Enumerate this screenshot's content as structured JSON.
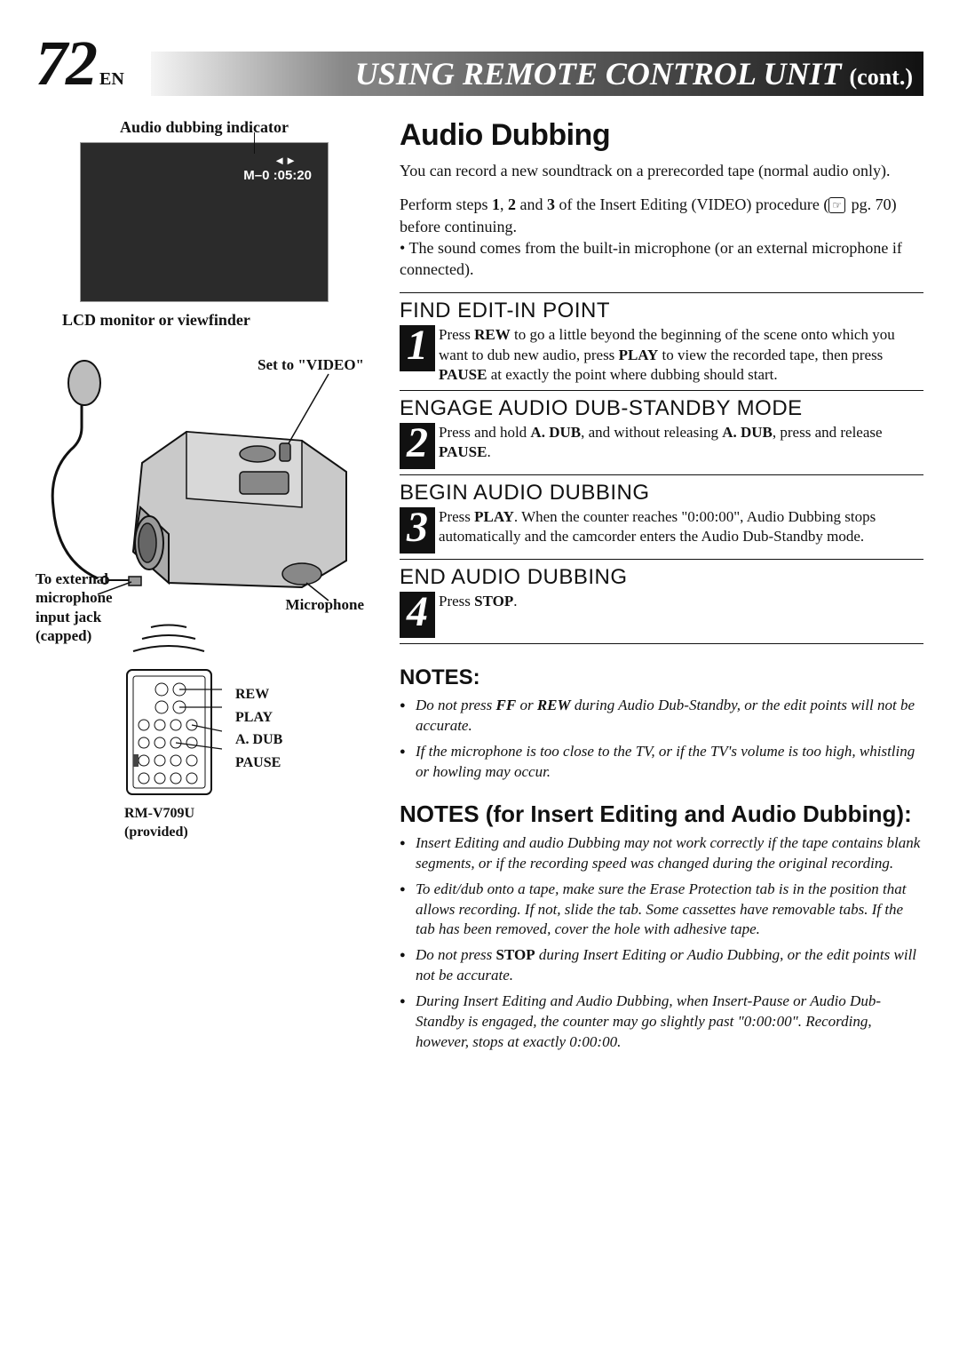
{
  "page": {
    "number": "72",
    "lang": "EN"
  },
  "header": {
    "title": "USING REMOTE CONTROL UNIT",
    "cont": "(cont.)"
  },
  "left": {
    "indicator_label": "Audio dubbing indicator",
    "lcd_counter": "M–0 :05:20",
    "lcd_monitor_label": "LCD monitor or viewfinder",
    "set_video": "Set to \"VIDEO\"",
    "jack_label": "To external\nmicrophone\ninput jack\n(capped)",
    "mic_label": "Microphone",
    "remote_buttons": [
      "REW",
      "PLAY",
      "A. DUB",
      "PAUSE"
    ],
    "remote_model": "RM-V709U",
    "remote_provided": "(provided)"
  },
  "right": {
    "title": "Audio Dubbing",
    "intro1": "You can record a new soundtrack on a prerecorded tape (normal audio only).",
    "intro2_a": "Perform steps ",
    "intro2_b1": "1",
    "intro2_c": ", ",
    "intro2_b2": "2",
    "intro2_d": " and ",
    "intro2_b3": "3",
    "intro2_e": " of the Insert Editing (VIDEO) procedure (",
    "intro2_pg": " pg. 70) before continuing.",
    "intro3": "The sound comes from the built-in microphone (or an external microphone if connected).",
    "steps": [
      {
        "n": "1",
        "title": "FIND EDIT-IN POINT",
        "text_parts": [
          "Press ",
          "REW",
          " to go a little beyond the beginning of the scene onto which you want to dub new audio, press ",
          "PLAY",
          " to view the recorded tape, then press ",
          "PAUSE",
          " at exactly the point where dubbing should start."
        ]
      },
      {
        "n": "2",
        "title": "ENGAGE AUDIO DUB-STANDBY MODE",
        "text_parts": [
          "Press and hold ",
          "A. DUB",
          ", and without releasing ",
          "A. DUB",
          ", press and release ",
          "PAUSE",
          "."
        ]
      },
      {
        "n": "3",
        "title": "BEGIN AUDIO DUBBING",
        "text_parts": [
          "Press ",
          "PLAY",
          ". When the counter reaches \"0:00:00\", Audio Dubbing stops automatically and the camcorder enters the Audio Dub-Standby mode."
        ]
      },
      {
        "n": "4",
        "title": "END AUDIO DUBBING",
        "text_parts": [
          "Press ",
          "STOP",
          "."
        ]
      }
    ],
    "notes_title": "NOTES:",
    "notes": [
      [
        "Do not press ",
        "FF",
        " or ",
        "REW",
        " during Audio Dub-Standby, or the edit points will not be accurate."
      ],
      [
        "If the microphone is too close to the TV, or if the TV's volume is too high, whistling or howling may occur."
      ]
    ],
    "notes2_title": "NOTES (for Insert Editing and Audio Dubbing):",
    "notes2": [
      [
        "Insert Editing and audio Dubbing may not work correctly if the tape contains blank segments, or if the recording speed was changed during the original recording."
      ],
      [
        "To edit/dub onto a tape, make sure the Erase Protection tab is in the position that allows recording. If not, slide the tab. Some cassettes have removable tabs. If the tab has been removed, cover the hole with adhesive tape."
      ],
      [
        "Do not press ",
        "STOP",
        " during Insert Editing or Audio Dubbing, or the edit points will not be accurate."
      ],
      [
        "During Insert Editing and Audio Dubbing, when Insert-Pause or Audio Dub-Standby is engaged, the counter may go slightly past \"0:00:00\". Recording, however, stops at exactly 0:00:00."
      ]
    ]
  },
  "colors": {
    "ink": "#111111",
    "lcd_bg": "#2b2b2b",
    "cam_fill": "#c9c9c9",
    "cam_dark": "#888888"
  }
}
